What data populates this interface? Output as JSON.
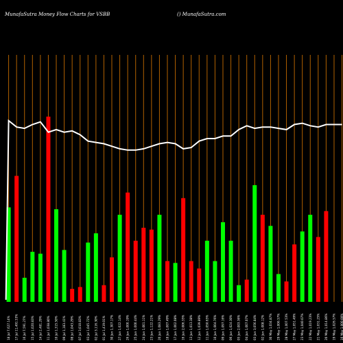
{
  "header": {
    "left": "MunafaSutra  Money Flow  Charts for VSBB",
    "right": "() MunafaSutra.com"
  },
  "chart_data": {
    "type": "bar",
    "title": "MunafaSutra  Money Flow  Charts for VSBB",
    "xlabel": "",
    "ylabel": "",
    "ylim": [
      0,
      100
    ],
    "grid": true,
    "legend": "none",
    "colors": {
      "up": "#00ff00",
      "down": "#ff0000",
      "grid": "#b36200",
      "line": "#ffffff",
      "background": "#000000"
    },
    "categories": [
      "Fri 18 Jul 2025",
      "Thu 17 Jul 2025",
      "Wed 16 Jul 2025",
      "Tue 15 Jul 2025",
      "Mon 14 Jul 2025",
      "Fri 11 Jul 2025",
      "Thu 10 Jul 2025",
      "Wed 09 Jul 2025",
      "Tue 08 Jul 2025",
      "Mon 07 Jul 2025",
      "Thu 03 Jul 2025",
      "Wed 02 Jul 2025",
      "Tue 01 Jul 2025",
      "Mon 30 Jun 2025",
      "Fri 27 Jun 2025",
      "Thu 26 Jun 2025",
      "Wed 25 Jun 2025",
      "Tue 24 Jun 2025",
      "Mon 23 Jun 2025",
      "Fri 20 Jun 2025",
      "Wed 18 Jun 2025",
      "Tue 17 Jun 2025",
      "Mon 16 Jun 2025",
      "Fri 13 Jun 2025",
      "Thu 12 Jun 2025",
      "Wed 11 Jun 2025",
      "Tue 10 Jun 2025",
      "Mon 09 Jun 2025",
      "Fri 06 Jun 2025",
      "Thu 05 Jun 2025",
      "Wed 04 Jun 2025",
      "Tue 03 Jun 2025",
      "Mon 02 Jun 2025",
      "Fri 30 May 2025",
      "Thu 29 May 2025",
      "Wed 28 May 2025",
      "Tue 27 May 2025",
      "Fri 23 May 2025",
      "Thu 22 May 2025",
      "Wed 21 May 2025",
      "Tue 20 May 2025",
      "Mon 19 May 2025",
      "Fri 16 May 2025"
    ],
    "bar_values": [
      51,
      68,
      13,
      27,
      26,
      100,
      50,
      28,
      7,
      8,
      32,
      37,
      9,
      24,
      47,
      59,
      33,
      40,
      39,
      47,
      22,
      21,
      56,
      22,
      18,
      33,
      22,
      43,
      33,
      9,
      12,
      63,
      47,
      41,
      15,
      11,
      31,
      38,
      47,
      35,
      49,
      0,
      0
    ],
    "bar_directions": [
      "up",
      "down",
      "up",
      "up",
      "up",
      "down",
      "up",
      "up",
      "down",
      "down",
      "up",
      "up",
      "down",
      "down",
      "up",
      "down",
      "down",
      "down",
      "down",
      "up",
      "down",
      "up",
      "down",
      "down",
      "down",
      "up",
      "up",
      "up",
      "up",
      "up",
      "down",
      "up",
      "down",
      "up",
      "up",
      "down",
      "down",
      "up",
      "up",
      "down",
      "down",
      "up",
      "up"
    ],
    "line_values": [
      99,
      94,
      93,
      96,
      98,
      90,
      92,
      90,
      91,
      88,
      83,
      82,
      81,
      79,
      77,
      76,
      76,
      77,
      79,
      81,
      82,
      81,
      77,
      78,
      83,
      85,
      85,
      87,
      87,
      92,
      95,
      93,
      94,
      94,
      93,
      92,
      96,
      97,
      95,
      94,
      96,
      96,
      96
    ],
    "tick_labels": [
      "18 Jul 7,627.14%",
      "17 Jul 11,491.53%",
      "16 Jul 7,591.27%",
      "15 Jul 1,020.83%",
      "14 Jul 2,481.29%",
      "11 Jul 1,038.80%",
      "10 Jul 1,315.50%",
      "09 Jul 1,183.41%",
      "08 Jul 1,043.29%",
      "07 Jul 3,010.83%",
      "03 Jul 1,045.72%",
      "02 Jul 3,116.30%",
      "01 Jul 1,419.01%",
      "30 Jun 1,307.17%",
      "27 Jun 1,022.14%",
      "26 Jun 1,000.19%",
      "25 Jun 1,000.44%",
      "24 Jun 1,001.11%",
      "23 Jun 1,122.21%",
      "20 Jun 1,083.29%",
      "18 Jun 1,007.49%",
      "17 Jun 1,002.08%",
      "16 Jun 2,006.35%",
      "13 Jun 1,013.38%",
      "12 Jun 1,039.89%",
      "11 Jun 1,050.65%",
      "10 Jun 1,004.76%",
      "09 Jun 1,097.16%",
      "06 Jun 1,024.30%",
      "05 Jun 2,003.36%",
      "04 Jun 1,007.07%",
      "03 Jun 3,056.84%",
      "02 Jun 1,008.12%",
      "30 May 1,034.87%",
      "29 May 1,006.57%",
      "28 May 1,007.53%",
      "27 May 1,051.49%",
      "23 May 1,040.07%",
      "22 May 1,019.23%",
      "21 May 1,031.25%",
      "20 May 1,014.86%",
      "19 May 1,026.57%",
      "16 May 1,000.00%"
    ]
  }
}
